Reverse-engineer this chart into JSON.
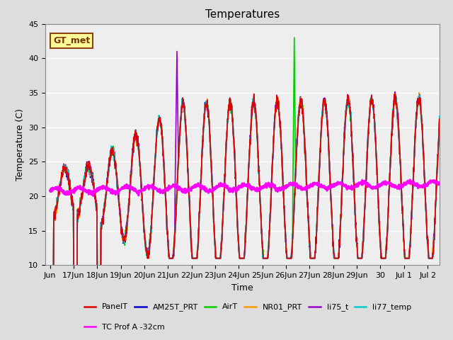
{
  "title": "Temperatures",
  "xlabel": "Time",
  "ylabel": "Temperature (C)",
  "ylim": [
    10,
    45
  ],
  "yticks": [
    10,
    15,
    20,
    25,
    30,
    35,
    40,
    45
  ],
  "fig_facecolor": "#dddddd",
  "plot_facecolor": "#eeeeee",
  "annotation_text": "GT_met",
  "series": {
    "PanelT": {
      "color": "#dd0000",
      "lw": 1.2,
      "zorder": 5
    },
    "AM25T_PRT": {
      "color": "#0000cc",
      "lw": 1.2,
      "zorder": 4
    },
    "AirT": {
      "color": "#00cc00",
      "lw": 1.2,
      "zorder": 4
    },
    "NR01_PRT": {
      "color": "#ff9900",
      "lw": 1.2,
      "zorder": 4
    },
    "li75_t": {
      "color": "#9900cc",
      "lw": 1.2,
      "zorder": 4
    },
    "li77_temp": {
      "color": "#00cccc",
      "lw": 1.2,
      "zorder": 4
    },
    "TC Prof A -32cm": {
      "color": "#ff00ff",
      "lw": 2.0,
      "zorder": 6
    }
  },
  "xtick_labels": [
    "Jun",
    "17Jun",
    "18Jun",
    "19Jun",
    "20Jun",
    "21Jun",
    "22Jun",
    "23Jun",
    "24Jun",
    "25Jun",
    "26Jun",
    "27Jun",
    "28Jun",
    "29Jun",
    "30",
    "Jul 1",
    "Jul 2"
  ],
  "legend_order": [
    "PanelT",
    "AM25T_PRT",
    "AirT",
    "NR01_PRT",
    "li75_t",
    "li77_temp",
    "TC Prof A -32cm"
  ],
  "legend_ncol_row1": 6,
  "title_fontsize": 11,
  "tick_fontsize": 8,
  "label_fontsize": 9,
  "legend_fontsize": 8
}
